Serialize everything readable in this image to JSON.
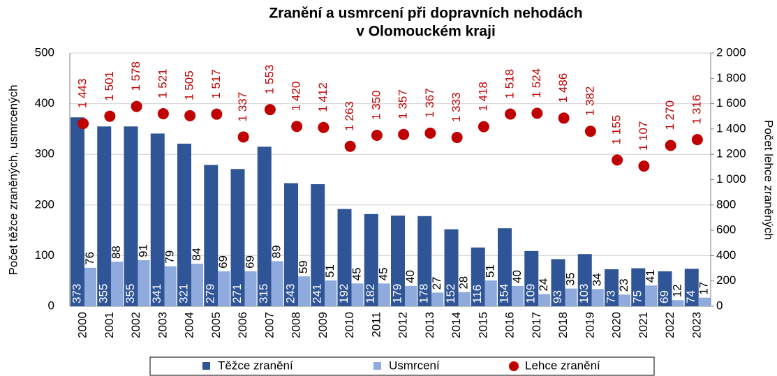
{
  "chart_data": {
    "type": "bar",
    "title_lines": [
      "Zranění a usmrcení při dopravních nehodách",
      "v Olomouckém kraji"
    ],
    "y_label": "Počet těžce zraněných, usmrcených",
    "y2_label": "Počet lehce zraněných",
    "categories": [
      "2000",
      "2001",
      "2002",
      "2003",
      "2004",
      "2005",
      "2006",
      "2007",
      "2008",
      "2009",
      "2010",
      "2011",
      "2012",
      "2013",
      "2014",
      "2015",
      "2016",
      "2017",
      "2018",
      "2019",
      "2020",
      "2021",
      "2022",
      "2023"
    ],
    "series": [
      {
        "name": "Těžce zranění",
        "color": "#2f5597",
        "kind": "bar",
        "values": [
          373,
          355,
          355,
          341,
          321,
          279,
          271,
          315,
          243,
          241,
          192,
          182,
          179,
          178,
          152,
          116,
          154,
          109,
          93,
          103,
          73,
          75,
          69,
          74
        ]
      },
      {
        "name": "Usmrcení",
        "color": "#8faadc",
        "kind": "bar",
        "values": [
          76,
          88,
          91,
          79,
          84,
          69,
          69,
          89,
          59,
          51,
          45,
          45,
          40,
          27,
          28,
          51,
          40,
          24,
          35,
          34,
          23,
          41,
          12,
          17
        ]
      },
      {
        "name": "Lehce zranění",
        "color": "#c00000",
        "kind": "dot",
        "axis": "y2",
        "values": [
          1443,
          1501,
          1578,
          1521,
          1505,
          1517,
          1337,
          1553,
          1420,
          1412,
          1263,
          1350,
          1357,
          1367,
          1333,
          1418,
          1518,
          1524,
          1486,
          1382,
          1155,
          1107,
          1270,
          1316
        ],
        "value_labels": [
          "1 443",
          "1 501",
          "1 578",
          "1 521",
          "1 505",
          "1 517",
          "1 337",
          "1 553",
          "1 420",
          "1 412",
          "1 263",
          "1 350",
          "1 357",
          "1 367",
          "1 333",
          "1 418",
          "1 518",
          "1 524",
          "1 486",
          "1 382",
          "1 155",
          "1 107",
          "1 270",
          "1 316"
        ]
      }
    ],
    "ylim": [
      0,
      500
    ],
    "yticks": [
      0,
      100,
      200,
      300,
      400,
      500
    ],
    "y2lim": [
      0,
      2000
    ],
    "y2ticks": [
      0,
      200,
      400,
      600,
      800,
      {
        "value": 1000,
        "label": "1 000"
      },
      {
        "value": 1200,
        "label": "1 200"
      },
      {
        "value": 1400,
        "label": "1 400"
      },
      {
        "value": 1600,
        "label": "1 600"
      },
      {
        "value": 1800,
        "label": "1 800"
      },
      {
        "value": 2000,
        "label": "2 000"
      }
    ],
    "grid": true,
    "legend": "bottom"
  }
}
